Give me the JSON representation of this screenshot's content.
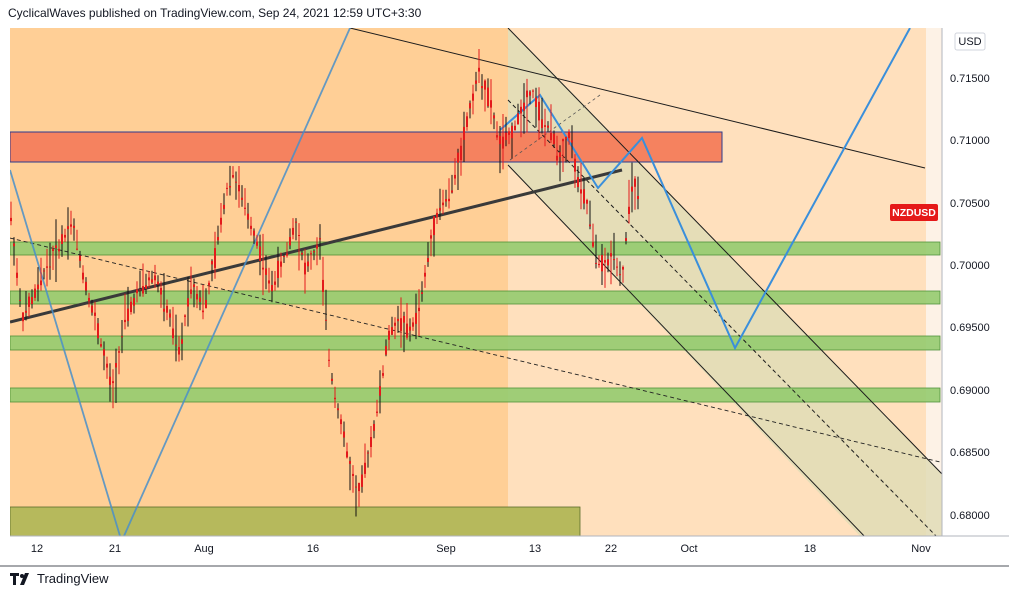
{
  "header": {
    "text": "CyclicalWaves published on TradingView.com, Sep 24, 2021 12:59 UTC+3:30"
  },
  "footer": {
    "brand": "TradingView",
    "logo_icon": "tradingview-logo-icon"
  },
  "chart_data": {
    "type": "candlestick",
    "symbol": "NZDUSD",
    "currency": "USD",
    "price_label": "NZDUSD",
    "y_ticks": [
      "0.71500",
      "0.71000",
      "0.70500",
      "0.70000",
      "0.69500",
      "0.69000",
      "0.68500",
      "0.68000"
    ],
    "y_range": [
      0.6785,
      0.7195
    ],
    "x_ticks": [
      "12",
      "21",
      "Aug",
      "16",
      "Sep",
      "13",
      "22",
      "Oct",
      "18",
      "Nov"
    ],
    "grid": false,
    "colors": {
      "background_zone": "#ffcf96",
      "recent_zone": "#ffe7cc",
      "resistance_zone": "#f5785b",
      "support_zone": "#8fc86a",
      "bottom_zone": "#b4b55a",
      "channel_fill": "#e2dcb2",
      "candle_bar": "#e31a1c",
      "projection_line": "#3a8fdb",
      "trend_line": "#2f2f2f",
      "price_label_bg": "#e51919"
    },
    "zones": [
      {
        "kind": "resistance",
        "low": 0.7082,
        "high": 0.7106
      },
      {
        "kind": "support",
        "low": 0.7008,
        "high": 0.7021
      },
      {
        "kind": "support",
        "low": 0.6968,
        "high": 0.6979
      },
      {
        "kind": "support",
        "low": 0.6932,
        "high": 0.6943
      },
      {
        "kind": "support",
        "low": 0.6891,
        "high": 0.6902
      },
      {
        "kind": "support",
        "low": 0.6784,
        "high": 0.6806
      }
    ],
    "last_close": 0.7045
  }
}
